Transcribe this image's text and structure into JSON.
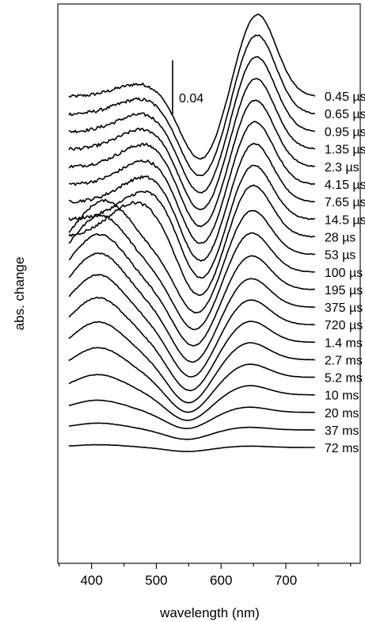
{
  "chart_data": {
    "type": "line",
    "xlabel": "wavelength (nm)",
    "ylabel": "abs. change",
    "x_ticks": [
      400,
      500,
      600,
      700
    ],
    "xlim": [
      355,
      860
    ],
    "x_start": 365,
    "x_end": 745,
    "scale_bar": {
      "label": "0.04",
      "value": 0.04
    },
    "y_offsets_note": "",
    "series": [
      {
        "label": "0.45 µs",
        "baseline": 0.0,
        "fine": 1.0
      },
      {
        "label": "0.65 µs",
        "baseline": -0.013,
        "fine": 1.0
      },
      {
        "label": "0.95 µs",
        "baseline": -0.026,
        "fine": 1.0
      },
      {
        "label": "1.35 µs",
        "baseline": -0.039,
        "fine": 1.0
      },
      {
        "label": "2.3 µs",
        "baseline": -0.052,
        "fine": 1.0
      },
      {
        "label": "4.15 µs",
        "baseline": -0.065,
        "fine": 1.0
      },
      {
        "label": "7.65 µs",
        "baseline": -0.078,
        "fine": 1.0
      },
      {
        "label": "14.5 µs",
        "baseline": -0.091,
        "fine": 1.0
      },
      {
        "label": "28 µs",
        "baseline": -0.104,
        "fine": 0.9
      },
      {
        "label": "53 µs",
        "baseline": -0.117,
        "fine": 0.7
      },
      {
        "label": "100 µs",
        "baseline": -0.13,
        "fine": 0.6
      },
      {
        "label": "195 µs",
        "baseline": -0.143,
        "fine": 0.5
      },
      {
        "label": "375 µs",
        "baseline": -0.156,
        "fine": 0.4
      },
      {
        "label": "720 µs",
        "baseline": -0.169,
        "fine": 0.35
      },
      {
        "label": "1.4 ms",
        "baseline": -0.182,
        "fine": 0.3
      },
      {
        "label": "2.7 ms",
        "baseline": -0.195,
        "fine": 0.25
      },
      {
        "label": "5.2 ms",
        "baseline": -0.208,
        "fine": 0.2
      },
      {
        "label": "10 ms",
        "baseline": -0.221,
        "fine": 0.15
      },
      {
        "label": "20 ms",
        "baseline": -0.234,
        "fine": 0.1
      },
      {
        "label": "37 ms",
        "baseline": -0.247,
        "fine": 0.1
      },
      {
        "label": "72 ms",
        "baseline": -0.26,
        "fine": 0.1
      }
    ],
    "curve_shapes": [
      {
        "p1": 0.01,
        "c1": 480,
        "p2": -0.048,
        "c2": 568,
        "p3": 0.062,
        "c3": 655
      },
      {
        "p1": 0.012,
        "c1": 482,
        "p2": -0.048,
        "c2": 568,
        "p3": 0.06,
        "c3": 654
      },
      {
        "p1": 0.014,
        "c1": 484,
        "p2": -0.048,
        "c2": 568,
        "p3": 0.057,
        "c3": 653
      },
      {
        "p1": 0.016,
        "c1": 486,
        "p2": -0.048,
        "c2": 568,
        "p3": 0.054,
        "c3": 652
      },
      {
        "p1": 0.018,
        "c1": 488,
        "p2": -0.048,
        "c2": 568,
        "p3": 0.051,
        "c3": 651
      },
      {
        "p1": 0.019,
        "c1": 489,
        "p2": -0.048,
        "c2": 568,
        "p3": 0.048,
        "c3": 650
      },
      {
        "p1": 0.02,
        "c1": 489,
        "p2": -0.048,
        "c2": 568,
        "p3": 0.045,
        "c3": 649
      },
      {
        "p1": 0.022,
        "c1": 488,
        "p2": -0.048,
        "c2": 568,
        "p3": 0.042,
        "c3": 648
      },
      {
        "p1": 0.026,
        "c1": 470,
        "p2": -0.046,
        "c2": 566,
        "p3": 0.04,
        "c3": 647
      },
      {
        "p1": 0.04,
        "c1": 420,
        "p2": -0.044,
        "c2": 563,
        "p3": 0.034,
        "c3": 646
      },
      {
        "p1": 0.042,
        "c1": 414,
        "p2": -0.043,
        "c2": 560,
        "p3": 0.03,
        "c3": 645
      },
      {
        "p1": 0.041,
        "c1": 412,
        "p2": -0.042,
        "c2": 558,
        "p3": 0.026,
        "c3": 645
      },
      {
        "p1": 0.04,
        "c1": 411,
        "p2": -0.041,
        "c2": 556,
        "p3": 0.022,
        "c3": 644
      },
      {
        "p1": 0.037,
        "c1": 410,
        "p2": -0.039,
        "c2": 554,
        "p3": 0.019,
        "c3": 644
      },
      {
        "p1": 0.033,
        "c1": 410,
        "p2": -0.036,
        "c2": 552,
        "p3": 0.016,
        "c3": 644
      },
      {
        "p1": 0.028,
        "c1": 410,
        "p2": -0.032,
        "c2": 550,
        "p3": 0.013,
        "c3": 643
      },
      {
        "p1": 0.022,
        "c1": 410,
        "p2": -0.026,
        "c2": 549,
        "p3": 0.01,
        "c3": 643
      },
      {
        "p1": 0.015,
        "c1": 410,
        "p2": -0.019,
        "c2": 548,
        "p3": 0.007,
        "c3": 643
      },
      {
        "p1": 0.009,
        "c1": 410,
        "p2": -0.012,
        "c2": 547,
        "p3": 0.004,
        "c3": 642
      },
      {
        "p1": 0.005,
        "c1": 410,
        "p2": -0.007,
        "c2": 547,
        "p3": 0.002,
        "c3": 642
      },
      {
        "p1": 0.002,
        "c1": 410,
        "p2": -0.003,
        "c2": 547,
        "p3": 0.001,
        "c3": 642
      }
    ]
  }
}
